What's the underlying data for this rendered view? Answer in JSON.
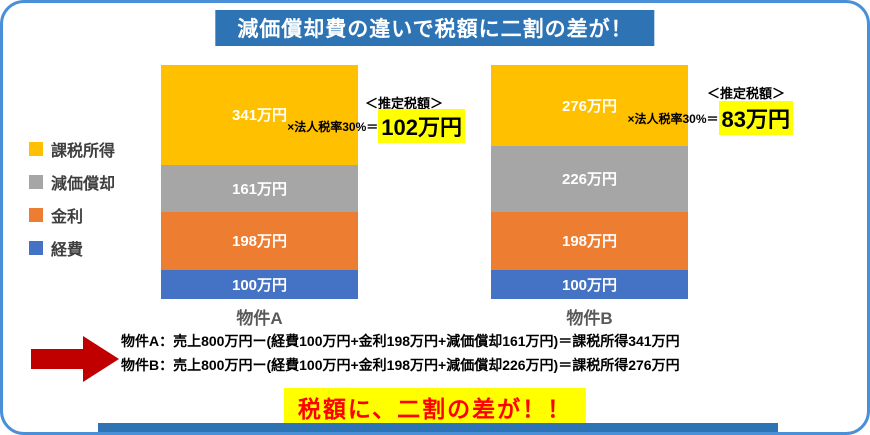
{
  "title": "減価償却費の違いで税額に二割の差が！",
  "legend": [
    {
      "label": "課税所得",
      "color": "#FFC000"
    },
    {
      "label": "減価償却",
      "color": "#A6A6A6"
    },
    {
      "label": "金利",
      "color": "#ED7D31"
    },
    {
      "label": "経費",
      "color": "#4472C4"
    }
  ],
  "chart_data": {
    "type": "bar",
    "stacked": true,
    "title": "減価償却費の違いで税額に二割の差が！",
    "categories": [
      "物件A",
      "物件B"
    ],
    "series": [
      {
        "name": "課税所得",
        "color": "#FFC000",
        "values": [
          341,
          276
        ]
      },
      {
        "name": "減価償却",
        "color": "#A6A6A6",
        "values": [
          161,
          226
        ]
      },
      {
        "name": "金利",
        "color": "#ED7D31",
        "values": [
          198,
          198
        ]
      },
      {
        "name": "経費",
        "color": "#4472C4",
        "values": [
          100,
          100
        ]
      }
    ],
    "unit": "万円",
    "total": 800,
    "ylim": [
      0,
      800
    ],
    "legend_position": "left",
    "grid": false
  },
  "annotations": {
    "a": {
      "header": "＜推定税額＞",
      "formula": "×法人税率30%＝",
      "value": "102万円"
    },
    "b": {
      "header": "＜推定税額＞",
      "formula": "×法人税率30%＝",
      "value": "83万円"
    }
  },
  "footer": {
    "line_a": "物件A：売上800万円ー(経費100万円+金利198万円+減価償却161万円)＝課税所得341万円",
    "line_b": "物件B：売上800万円ー(経費100万円+金利198万円+減価償却226万円)＝課税所得276万円",
    "highlight": "税額に、二割の差が！！"
  },
  "colors": {
    "title_bg": "#2E74B5",
    "border": "#4A90D9",
    "highlight_bg": "#FFFF00",
    "highlight_text": "#FF0000",
    "arrow": "#C00000"
  }
}
